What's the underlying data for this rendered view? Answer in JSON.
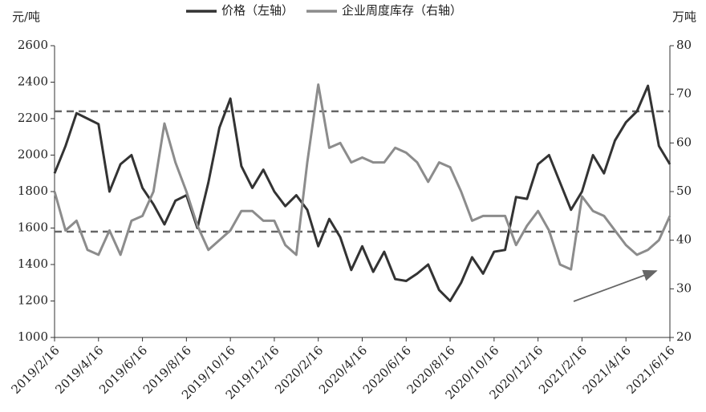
{
  "chart_data": {
    "type": "line",
    "legend": "top",
    "ylabel": "元/吨",
    "y2label": "万吨",
    "categories": [
      "2019/2/16",
      null,
      null,
      null,
      "2019/4/16",
      null,
      null,
      null,
      "2019/6/16",
      null,
      null,
      null,
      "2019/8/16",
      null,
      null,
      null,
      "2019/10/16",
      null,
      null,
      null,
      "2019/12/16",
      null,
      null,
      null,
      "2020/2/16",
      null,
      null,
      null,
      "2020/4/16",
      null,
      null,
      null,
      "2020/6/16",
      null,
      null,
      null,
      "2020/8/16",
      null,
      null,
      null,
      "2020/10/16",
      null,
      null,
      null,
      "2020/12/16",
      null,
      null,
      null,
      "2021/2/16",
      null,
      null,
      null,
      "2021/4/16",
      null,
      null,
      null,
      "2021/6/16"
    ],
    "series": [
      {
        "name": "价格（左轴）",
        "color": "#333333",
        "axis": "y",
        "values": [
          1900,
          2050,
          2230,
          2200,
          2170,
          1800,
          1950,
          2000,
          1820,
          1730,
          1620,
          1750,
          1780,
          1600,
          1850,
          2150,
          2310,
          1940,
          1820,
          1920,
          1800,
          1720,
          1780,
          1700,
          1500,
          1650,
          1550,
          1370,
          1500,
          1360,
          1470,
          1320,
          1310,
          1350,
          1400,
          1260,
          1200,
          1300,
          1440,
          1350,
          1470,
          1480,
          1770,
          1760,
          1950,
          2000,
          1850,
          1700,
          1800,
          2000,
          1900,
          2080,
          2180,
          2240,
          2380,
          2050,
          1950
        ]
      },
      {
        "name": "企业周度库存（右轴）",
        "color": "#8c8c8c",
        "axis": "y2",
        "values": [
          50,
          42,
          44,
          38,
          37,
          42,
          37,
          44,
          45,
          50,
          64,
          56,
          50,
          43,
          38,
          40,
          42,
          46,
          46,
          44,
          44,
          39,
          37,
          56,
          72,
          59,
          60,
          56,
          57,
          56,
          56,
          59,
          58,
          56,
          52,
          56,
          55,
          50,
          44,
          45,
          45,
          45,
          39,
          43,
          46,
          42,
          35,
          34,
          49,
          46,
          45,
          42,
          39,
          37,
          38,
          40,
          45
        ]
      }
    ],
    "reference_lines": [
      2240,
      1580
    ],
    "ylim": [
      1000,
      2600
    ],
    "yticks": [
      1000,
      1200,
      1400,
      1600,
      1800,
      2000,
      2200,
      2400,
      2600
    ],
    "y2lim": [
      20,
      80
    ],
    "y2ticks": [
      20,
      30,
      40,
      50,
      60,
      70,
      80
    ]
  }
}
